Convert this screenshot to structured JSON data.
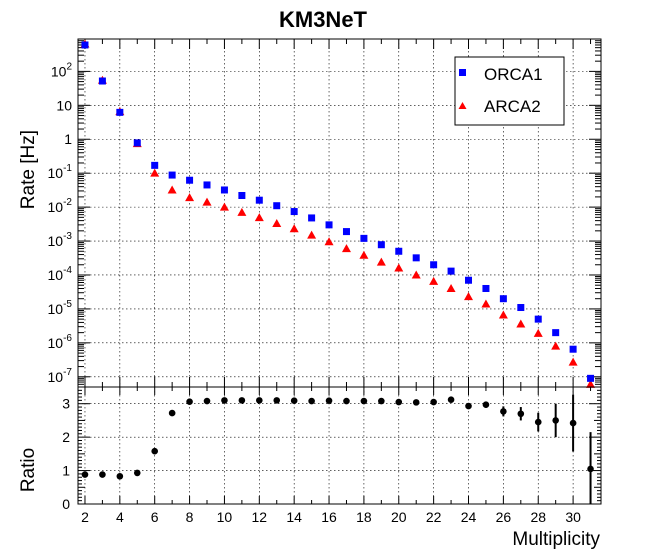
{
  "chart_data": [
    {
      "type": "scatter",
      "title": "KM3NeT",
      "ylabel": "Rate [Hz]",
      "yscale": "log",
      "ylim": [
        5e-08,
        900
      ],
      "xlim": [
        1.6,
        31.6
      ],
      "grid": true,
      "legend_position": "top-right",
      "ytick_labels": [
        "10^{-7}",
        "10^{-6}",
        "10^{-5}",
        "10^{-4}",
        "10^{-3}",
        "10^{-2}",
        "10^{-1}",
        "1",
        "10",
        "10^{2}"
      ],
      "series": [
        {
          "name": "ORCA1",
          "marker": "square",
          "color": "#0000ff",
          "x": [
            2,
            3,
            4,
            5,
            6,
            7,
            8,
            9,
            10,
            11,
            12,
            13,
            14,
            15,
            16,
            17,
            18,
            19,
            20,
            21,
            22,
            23,
            24,
            25,
            26,
            27,
            28,
            29,
            30,
            31
          ],
          "y": [
            600,
            52,
            6.2,
            0.78,
            0.17,
            0.088,
            0.062,
            0.045,
            0.032,
            0.022,
            0.016,
            0.011,
            0.0074,
            0.0048,
            0.003,
            0.0019,
            0.0012,
            0.00078,
            0.0005,
            0.00032,
            0.0002,
            0.00013,
            7e-05,
            4e-05,
            2e-05,
            1.1e-05,
            5e-06,
            2e-06,
            6.5e-07,
            9e-08
          ]
        },
        {
          "name": "ARCA2",
          "marker": "triangle",
          "color": "#ff0000",
          "x": [
            2,
            3,
            4,
            5,
            6,
            7,
            8,
            9,
            10,
            11,
            12,
            13,
            14,
            15,
            16,
            17,
            18,
            19,
            20,
            21,
            22,
            23,
            24,
            25,
            26,
            27,
            28,
            29,
            30,
            31
          ],
          "y": [
            640,
            55,
            6.5,
            0.74,
            0.1,
            0.032,
            0.019,
            0.014,
            0.01,
            0.007,
            0.0049,
            0.0033,
            0.0023,
            0.0015,
            0.00095,
            0.0006,
            0.00038,
            0.00024,
            0.00016,
            0.0001,
            6.5e-05,
            4e-05,
            2.3e-05,
            1.4e-05,
            6.6e-06,
            3.6e-06,
            1.9e-06,
            8e-07,
            2.7e-07,
            6e-08
          ]
        }
      ]
    },
    {
      "type": "scatter",
      "xlabel": "Multiplicity",
      "ylabel": "Ratio",
      "xlim": [
        1.6,
        31.6
      ],
      "ylim": [
        0,
        3.5
      ],
      "grid": true,
      "x_ticks": [
        2,
        4,
        6,
        8,
        10,
        12,
        14,
        16,
        18,
        20,
        22,
        24,
        26,
        28,
        30
      ],
      "y_ticks": [
        0,
        1,
        2,
        3
      ],
      "series": [
        {
          "name": "Ratio",
          "marker": "circle",
          "color": "#000000",
          "x": [
            2,
            3,
            4,
            5,
            6,
            7,
            8,
            9,
            10,
            11,
            12,
            13,
            14,
            15,
            16,
            17,
            18,
            19,
            20,
            21,
            22,
            23,
            24,
            25,
            26,
            27,
            28,
            29,
            30,
            31
          ],
          "y": [
            0.88,
            0.88,
            0.83,
            0.93,
            1.58,
            2.72,
            3.06,
            3.08,
            3.1,
            3.1,
            3.1,
            3.1,
            3.09,
            3.08,
            3.09,
            3.08,
            3.08,
            3.08,
            3.05,
            3.04,
            3.05,
            3.12,
            2.93,
            2.97,
            2.77,
            2.7,
            2.45,
            2.5,
            2.42,
            1.05
          ],
          "y_error": [
            0.02,
            0.02,
            0.02,
            0.02,
            0.02,
            0.03,
            0.03,
            0.03,
            0.03,
            0.03,
            0.03,
            0.03,
            0.03,
            0.03,
            0.03,
            0.03,
            0.03,
            0.04,
            0.05,
            0.05,
            0.05,
            0.06,
            0.07,
            0.09,
            0.15,
            0.2,
            0.28,
            0.5,
            0.85,
            1.1
          ]
        }
      ]
    }
  ]
}
